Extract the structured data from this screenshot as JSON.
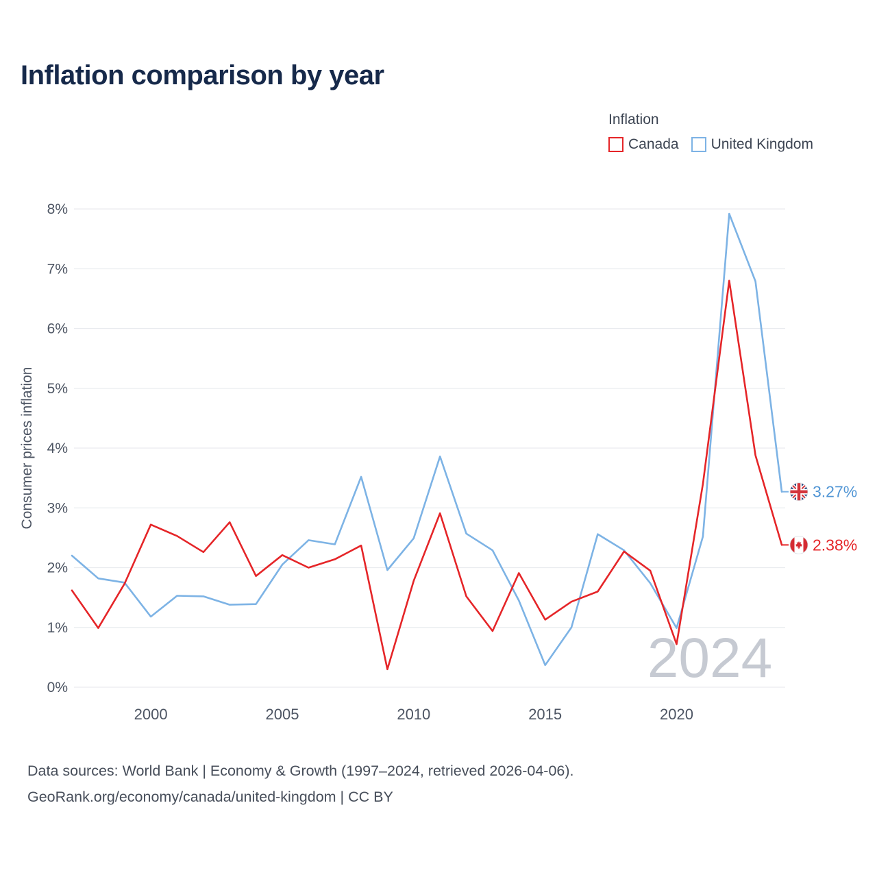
{
  "page": {
    "title": "Inflation comparison by year"
  },
  "legend": {
    "title": "Inflation",
    "items": [
      {
        "label": "Canada",
        "color": "#e52528"
      },
      {
        "label": "United Kingdom",
        "color": "#7db3e5"
      }
    ]
  },
  "chart_data": {
    "type": "line",
    "title": "Inflation comparison by year",
    "ylabel": "Consumer prices inflation",
    "xlabel": "",
    "ylim": [
      0,
      8
    ],
    "grid": "horizontal",
    "legend_position": "top-right",
    "watermark": "2024",
    "x": [
      1997,
      1998,
      1999,
      2000,
      2001,
      2002,
      2003,
      2004,
      2005,
      2006,
      2007,
      2008,
      2009,
      2010,
      2011,
      2012,
      2013,
      2014,
      2015,
      2016,
      2017,
      2018,
      2019,
      2020,
      2021,
      2022,
      2023,
      2024
    ],
    "xticks": [
      2000,
      2005,
      2010,
      2015,
      2020
    ],
    "ytick_labels": [
      "0%",
      "1%",
      "2%",
      "3%",
      "4%",
      "5%",
      "6%",
      "7%",
      "8%"
    ],
    "series": [
      {
        "name": "United Kingdom",
        "color": "#7db3e5",
        "end_label": "3.27%",
        "end_label_color": "#5296d5",
        "flag": "uk-flag-icon",
        "values": [
          2.2,
          1.82,
          1.75,
          1.18,
          1.53,
          1.52,
          1.38,
          1.39,
          2.05,
          2.46,
          2.39,
          3.52,
          1.96,
          2.49,
          3.86,
          2.57,
          2.29,
          1.45,
          0.37,
          1.0,
          2.56,
          2.29,
          1.74,
          0.99,
          2.52,
          7.92,
          6.79,
          3.27
        ]
      },
      {
        "name": "Canada",
        "color": "#e52528",
        "end_label": "2.38%",
        "end_label_color": "#e52528",
        "flag": "canada-flag-icon",
        "values": [
          1.62,
          0.99,
          1.73,
          2.72,
          2.53,
          2.26,
          2.76,
          1.86,
          2.21,
          2.0,
          2.14,
          2.37,
          0.3,
          1.78,
          2.91,
          1.52,
          0.94,
          1.91,
          1.13,
          1.43,
          1.6,
          2.27,
          1.95,
          0.72,
          3.4,
          6.8,
          3.88,
          2.38
        ]
      }
    ]
  },
  "footer": {
    "line1": "Data sources: World Bank | Economy & Growth (1997–2024, retrieved 2026-04-06).",
    "line2": "GeoRank.org/economy/canada/united-kingdom | CC BY"
  }
}
